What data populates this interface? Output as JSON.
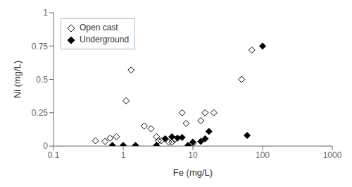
{
  "chart_data": {
    "type": "scatter",
    "xlabel": "Fe (mg/L)",
    "ylabel": "Ni (mg/L)",
    "log": "x",
    "xlim": [
      0.1,
      1000
    ],
    "ylim": [
      0,
      1.0
    ],
    "xticks": [
      0.1,
      1,
      10,
      100,
      1000
    ],
    "yticks": [
      0,
      0.25,
      0.5,
      0.75,
      1
    ],
    "legend": "upper left",
    "grid": false,
    "series": [
      {
        "name": "Open cast",
        "color": "#000000",
        "marker": "diamond_open",
        "x": [
          0.4,
          0.55,
          0.65,
          0.8,
          1.1,
          1.3,
          2.0,
          2.5,
          3.0,
          3.2,
          3.5,
          4.5,
          5.0,
          5.5,
          7.0,
          8.0,
          10.0,
          13.0,
          15.0,
          20.0,
          50.0,
          70.0
        ],
        "values": [
          0.04,
          0.035,
          0.06,
          0.07,
          0.34,
          0.57,
          0.15,
          0.13,
          0.07,
          0.04,
          0.04,
          0.03,
          0.03,
          0.05,
          0.25,
          0.17,
          0.02,
          0.19,
          0.25,
          0.25,
          0.5,
          0.72
        ]
      },
      {
        "name": "Underground",
        "color": "#000000",
        "marker": "diamond",
        "x": [
          0.7,
          1.0,
          1.5,
          3.0,
          4.0,
          5.0,
          6.0,
          7.0,
          8.5,
          10.0,
          13.0,
          15.0,
          17.0,
          60.0,
          100.0
        ],
        "values": [
          0.005,
          0.005,
          0.005,
          0.005,
          0.055,
          0.07,
          0.06,
          0.065,
          0.005,
          0.03,
          0.035,
          0.055,
          0.11,
          0.08,
          0.75
        ]
      }
    ]
  }
}
